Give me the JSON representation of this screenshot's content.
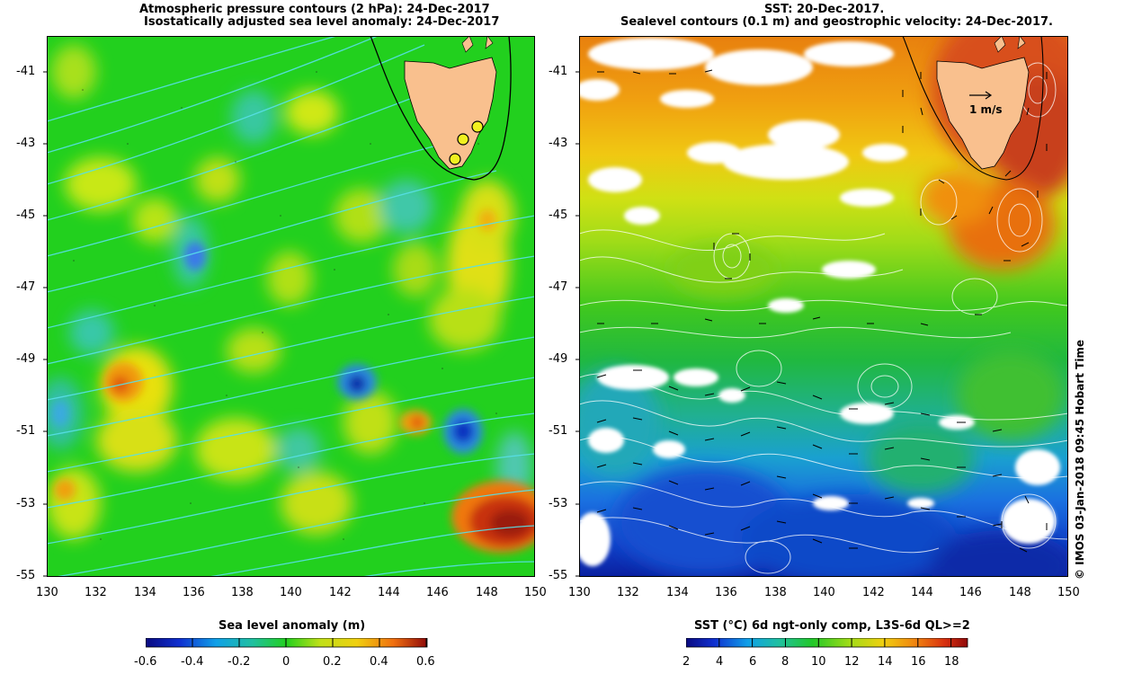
{
  "left_panel": {
    "title_line1": "Atmospheric pressure contours (2 hPa): 24-Dec-2017",
    "title_line2": "Isostatically adjusted sea level anomaly: 24-Dec-2017",
    "colorbar_title": "Sea level anomaly (m)",
    "colorbar_ticks": [
      "-0.6",
      "-0.4",
      "-0.2",
      "0",
      "0.2",
      "0.4",
      "0.6"
    ],
    "colorbar_range": [
      -0.6,
      0.6
    ]
  },
  "right_panel": {
    "title_line1": "SST: 20-Dec-2017.",
    "title_line2": "Sealevel contours (0.1 m) and geostrophic velocity: 24-Dec-2017.",
    "velocity_scale_label": "1 m/s",
    "colorbar_title": "SST (°C) 6d ngt-only comp, L3S-6d QL>=2",
    "colorbar_ticks": [
      "2",
      "4",
      "6",
      "8",
      "10",
      "12",
      "14",
      "16",
      "18"
    ],
    "colorbar_range": [
      2,
      19
    ]
  },
  "axes": {
    "lat_ticks": [
      "-41",
      "-43",
      "-45",
      "-47",
      "-49",
      "-51",
      "-53",
      "-55"
    ],
    "lon_ticks": [
      "130",
      "132",
      "134",
      "136",
      "138",
      "140",
      "142",
      "144",
      "146",
      "148",
      "150"
    ],
    "lat_range": [
      -55,
      -40
    ],
    "lon_range": [
      130,
      150
    ]
  },
  "credit": "© IMOS 03-Jan-2018 09:45 Hobart Time",
  "colors": {
    "land": "#f9c08e",
    "sla_background": "#22d01e",
    "pressure_contour": "#58e0e8",
    "sst_warm": "#e8781a",
    "sst_cold": "#1030c0",
    "missing": "#ffffff"
  }
}
